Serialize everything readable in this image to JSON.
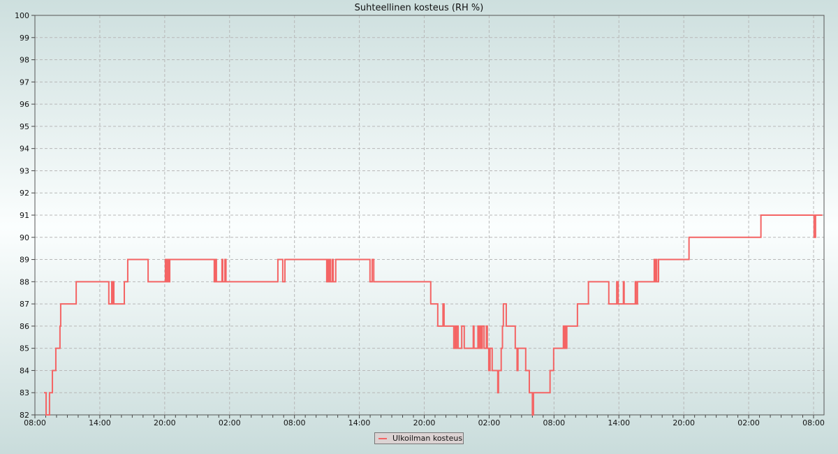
{
  "chart_data": {
    "type": "line",
    "step": true,
    "title": "Suhteellinen kosteus (RH %)",
    "xlabel": "",
    "ylabel": "",
    "ylim": [
      82,
      100
    ],
    "yticks": [
      82,
      83,
      84,
      85,
      86,
      87,
      88,
      89,
      90,
      91,
      92,
      93,
      94,
      95,
      96,
      97,
      98,
      99,
      100
    ],
    "xticks": [
      "08:00",
      "14:00",
      "20:00",
      "02:00",
      "08:00",
      "14:00",
      "20:00",
      "02:00",
      "08:00",
      "14:00",
      "20:00",
      "02:00",
      "08:00"
    ],
    "grid": true,
    "legend_position": "bottom",
    "series": [
      {
        "name": "Ulkoilman kosteus",
        "color": "#f46464",
        "points": [
          [
            "08:50",
            83
          ],
          [
            "09:02",
            82
          ],
          [
            "09:21",
            83
          ],
          [
            "09:37",
            84
          ],
          [
            "09:56",
            85
          ],
          [
            "10:19",
            86
          ],
          [
            "10:23",
            87
          ],
          [
            "11:49",
            88
          ],
          [
            "14:50",
            87
          ],
          [
            "15:06",
            88
          ],
          [
            "15:10",
            87
          ],
          [
            "15:14",
            88
          ],
          [
            "15:18",
            87
          ],
          [
            "16:16",
            88
          ],
          [
            "16:35",
            89
          ],
          [
            "18:28",
            88
          ],
          [
            "20:04",
            89
          ],
          [
            "20:10",
            88
          ],
          [
            "20:16",
            89
          ],
          [
            "20:22",
            88
          ],
          [
            "20:28",
            89
          ],
          [
            "00:35",
            88
          ],
          [
            "00:40",
            89
          ],
          [
            "00:47",
            88
          ],
          [
            "01:18",
            89
          ],
          [
            "01:22",
            88
          ],
          [
            "01:34",
            89
          ],
          [
            "01:40",
            88
          ],
          [
            "06:28",
            89
          ],
          [
            "06:55",
            88
          ],
          [
            "07:07",
            89
          ],
          [
            "10:59",
            88
          ],
          [
            "11:03",
            89
          ],
          [
            "11:07",
            88
          ],
          [
            "11:14",
            89
          ],
          [
            "11:20",
            88
          ],
          [
            "11:30",
            89
          ],
          [
            "11:35",
            88
          ],
          [
            "11:49",
            89
          ],
          [
            "14:59",
            88
          ],
          [
            "15:11",
            89
          ],
          [
            "15:20",
            88
          ],
          [
            "20:36",
            87
          ],
          [
            "21:15",
            86
          ],
          [
            "21:44",
            87
          ],
          [
            "21:50",
            86
          ],
          [
            "22:44",
            85
          ],
          [
            "22:52",
            86
          ],
          [
            "22:56",
            85
          ],
          [
            "23:00",
            86
          ],
          [
            "23:08",
            85
          ],
          [
            "23:28",
            86
          ],
          [
            "23:42",
            85
          ],
          [
            "00:32",
            86
          ],
          [
            "00:36",
            85
          ],
          [
            "00:58",
            86
          ],
          [
            "01:05",
            85
          ],
          [
            "01:10",
            86
          ],
          [
            "01:16",
            85
          ],
          [
            "01:22",
            86
          ],
          [
            "01:32",
            85
          ],
          [
            "01:45",
            86
          ],
          [
            "01:50",
            85
          ],
          [
            "01:58",
            84
          ],
          [
            "02:05",
            85
          ],
          [
            "02:17",
            84
          ],
          [
            "02:48",
            83
          ],
          [
            "02:52",
            84
          ],
          [
            "03:07",
            85
          ],
          [
            "03:14",
            86
          ],
          [
            "03:19",
            87
          ],
          [
            "03:35",
            86
          ],
          [
            "04:25",
            85
          ],
          [
            "04:35",
            84
          ],
          [
            "04:40",
            85
          ],
          [
            "05:23",
            84
          ],
          [
            "05:43",
            83
          ],
          [
            "06:00",
            82
          ],
          [
            "06:06",
            83
          ],
          [
            "07:38",
            84
          ],
          [
            "07:58",
            85
          ],
          [
            "08:52",
            86
          ],
          [
            "08:57",
            85
          ],
          [
            "09:02",
            86
          ],
          [
            "09:06",
            85
          ],
          [
            "09:11",
            86
          ],
          [
            "10:10",
            87
          ],
          [
            "11:11",
            88
          ],
          [
            "13:04",
            87
          ],
          [
            "13:48",
            88
          ],
          [
            "13:56",
            87
          ],
          [
            "14:25",
            88
          ],
          [
            "14:29",
            87
          ],
          [
            "15:31",
            88
          ],
          [
            "15:35",
            87
          ],
          [
            "15:43",
            88
          ],
          [
            "17:16",
            89
          ],
          [
            "17:21",
            88
          ],
          [
            "17:26",
            89
          ],
          [
            "17:30",
            88
          ],
          [
            "17:40",
            89
          ],
          [
            "20:29",
            90
          ],
          [
            "03:08",
            91
          ],
          [
            "08:03",
            90
          ],
          [
            "08:11",
            91
          ],
          [
            "08:49",
            91
          ]
        ]
      }
    ]
  }
}
